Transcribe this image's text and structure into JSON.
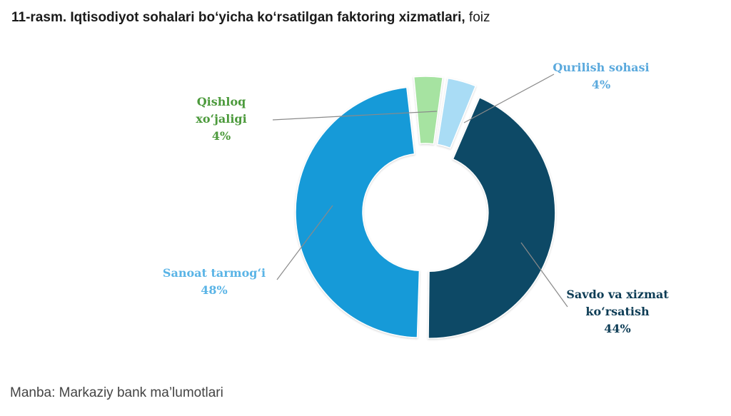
{
  "header": {
    "title_bold": "11-rasm. Iqtisodiyot sohalari bo‘yicha ko‘rsatilgan faktoring xizmatlari,",
    "title_unit": "foiz"
  },
  "chart_data": {
    "type": "pie",
    "variant": "donut",
    "slices": [
      {
        "label_lines": [
          "Qishloq",
          "xo‘jaligi"
        ],
        "value": 4,
        "value_label": "4%",
        "color": "#a6e3a1",
        "text_color": "#4c9a3c"
      },
      {
        "label_lines": [
          "Qurilish sohasi"
        ],
        "value": 4,
        "value_label": "4%",
        "color": "#a9dcf5",
        "text_color": "#5aa9dd"
      },
      {
        "label_lines": [
          "Savdo va xizmat",
          "ko‘rsatish"
        ],
        "value": 44,
        "value_label": "44%",
        "color": "#0d4a66",
        "text_color": "#0d3c55"
      },
      {
        "label_lines": [
          "Sanoat tarmog‘i"
        ],
        "value": 48,
        "value_label": "48%",
        "color": "#129ad8",
        "text_color": "#5ab4e6"
      }
    ]
  },
  "footer": {
    "source": "Manba: Markaziy bank ma’lumotlari"
  }
}
